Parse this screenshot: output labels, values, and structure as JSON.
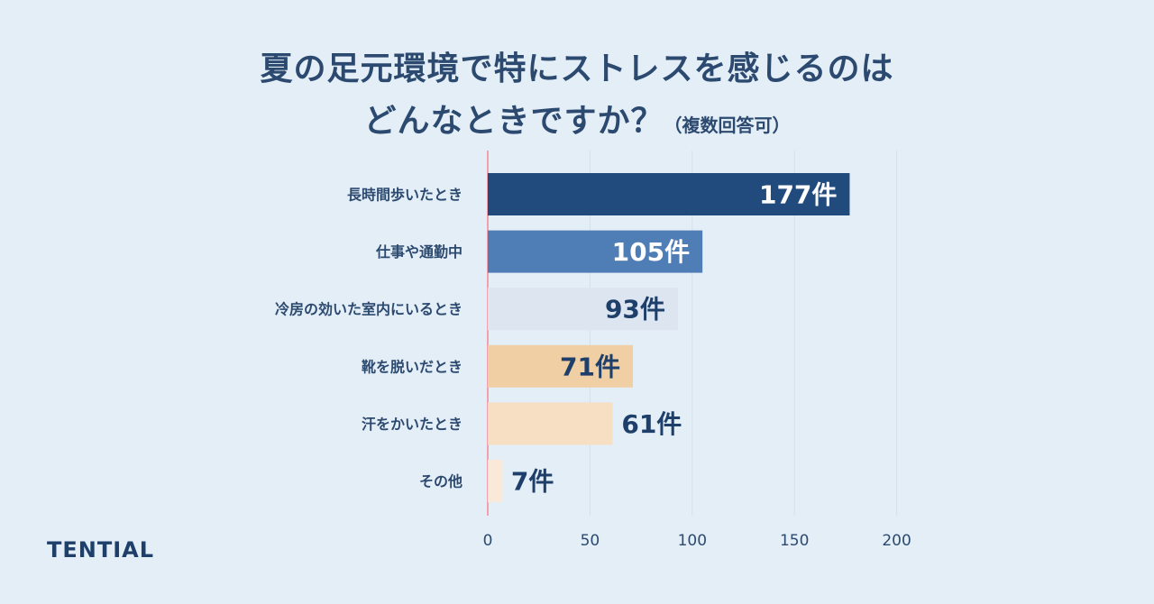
{
  "title": {
    "line1": "夏の足元環境で特にストレスを感じるのは",
    "line2": "どんなときですか？",
    "note": "（複数回答可）"
  },
  "brand": "TENTIAL",
  "chart_data": {
    "type": "bar",
    "orientation": "horizontal",
    "categories": [
      "長時間歩いたとき",
      "仕事や通勤中",
      "冷房の効いた室内にいるとき",
      "靴を脱いだとき",
      "汗をかいたとき",
      "その他"
    ],
    "values": [
      177,
      105,
      93,
      71,
      61,
      7
    ],
    "value_labels": [
      "177件",
      "105件",
      "93件",
      "71件",
      "61件",
      "7件"
    ],
    "bar_colors": [
      "#214a7d",
      "#4f7db5",
      "#dde5f0",
      "#f1cfa4",
      "#f6dfc3",
      "#fae9d9"
    ],
    "label_colors": [
      "#ffffff",
      "#ffffff",
      "#1e3f6a",
      "#1e3f6a",
      "#1e3f6a",
      "#1e3f6a"
    ],
    "xlim": [
      0,
      200
    ],
    "xticks": [
      0,
      50,
      100,
      150,
      200
    ],
    "grid": true,
    "xlabel": "",
    "ylabel": ""
  }
}
